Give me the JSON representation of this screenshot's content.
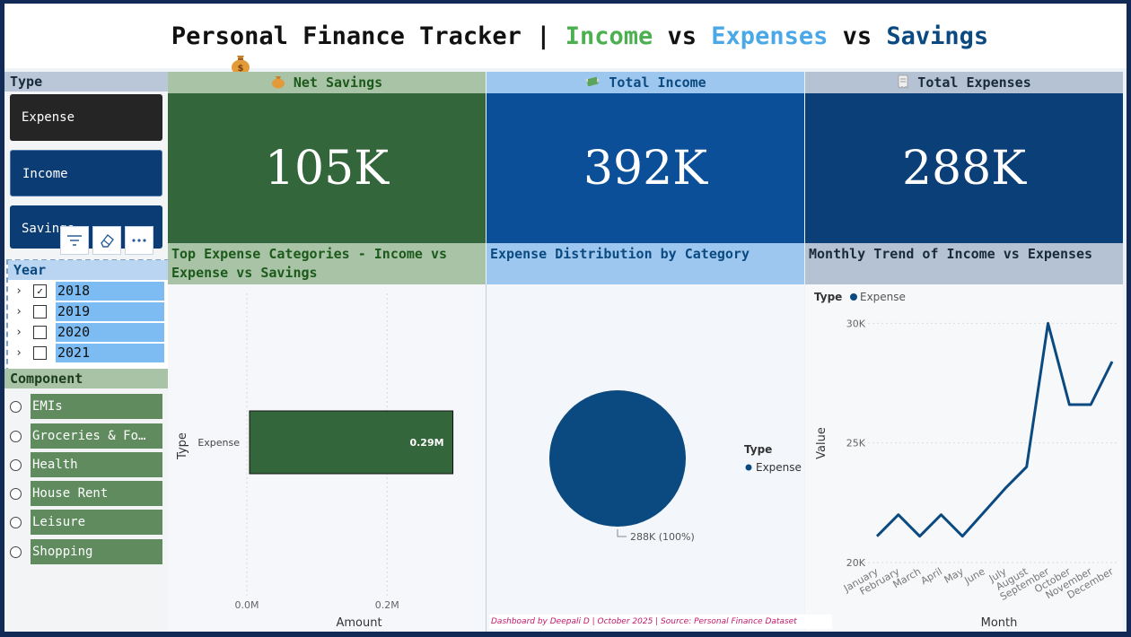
{
  "title": {
    "prefix": "Personal Finance Tracker | ",
    "income": "Income",
    "vs1": " vs ",
    "expenses": "Expenses",
    "vs2": " vs ",
    "savings": "Savings"
  },
  "slicers": {
    "type": {
      "header": "Type",
      "options": [
        "Expense",
        "Income",
        "Savings"
      ],
      "selected": "Expense"
    },
    "year": {
      "header": "Year",
      "items": [
        {
          "label": "2018",
          "checked": true
        },
        {
          "label": "2019",
          "checked": false
        },
        {
          "label": "2020",
          "checked": false
        },
        {
          "label": "2021",
          "checked": false
        }
      ]
    },
    "component": {
      "header": "Component",
      "items": [
        "EMIs",
        "Groceries & Fo…",
        "Health",
        "House Rent",
        "Leisure",
        "Shopping"
      ]
    }
  },
  "kpis": [
    {
      "label": "Net Savings",
      "icon": "money-bag-icon",
      "value": "105K"
    },
    {
      "label": "Total Income",
      "icon": "money-wings-icon",
      "value": "392K"
    },
    {
      "label": "Total Expenses",
      "icon": "receipt-icon",
      "value": "288K"
    }
  ],
  "panels": {
    "bar": {
      "title": "Top Expense Categories - Income vs Expense vs Savings",
      "xlabel": "Amount",
      "ylabel": "Type"
    },
    "pie": {
      "title": "Expense Distribution by Category",
      "legend_title": "Type",
      "legend_item": "Expense",
      "slice_label": "288K (100%)"
    },
    "line": {
      "title": "Monthly Trend of Income vs Expenses",
      "legend_title": "Type",
      "legend_item": "Expense",
      "xlabel": "Month",
      "ylabel": "Value"
    }
  },
  "footer": "Dashboard by Deepali D | October 2025 | Source: Personal Finance Dataset",
  "colors": {
    "savings_green": "#33663a",
    "income_blue": "#0b4f98",
    "expense_navy": "#0b3f78",
    "series": "#0b4a80"
  },
  "chart_data": [
    {
      "type": "bar",
      "orientation": "horizontal",
      "categories": [
        "Expense"
      ],
      "values": [
        0.29
      ],
      "data_labels": [
        "0.29M"
      ],
      "unit": "M",
      "xticks": [
        "0.0M",
        "0.2M"
      ],
      "xlim": [
        0,
        0.32
      ],
      "xlabel": "Amount",
      "ylabel": "Type",
      "grid": true
    },
    {
      "type": "pie",
      "slices": [
        {
          "name": "Expense",
          "value": 288,
          "percent": 100
        }
      ],
      "unit": "K",
      "legend": "right"
    },
    {
      "type": "line",
      "x": [
        "January",
        "February",
        "March",
        "April",
        "May",
        "June",
        "July",
        "August",
        "September",
        "October",
        "November",
        "December"
      ],
      "series": [
        {
          "name": "Expense",
          "values": [
            21100,
            22000,
            21100,
            22000,
            21100,
            22100,
            23100,
            24000,
            30000,
            26600,
            26600,
            28400
          ]
        }
      ],
      "ylim": [
        20000,
        30800
      ],
      "yticks": [
        {
          "value": 20000,
          "label": "20K"
        },
        {
          "value": 25000,
          "label": "25K"
        },
        {
          "value": 30000,
          "label": "30K"
        }
      ],
      "xlabel": "Month",
      "ylabel": "Value",
      "legend": "top-left",
      "grid": true
    }
  ]
}
